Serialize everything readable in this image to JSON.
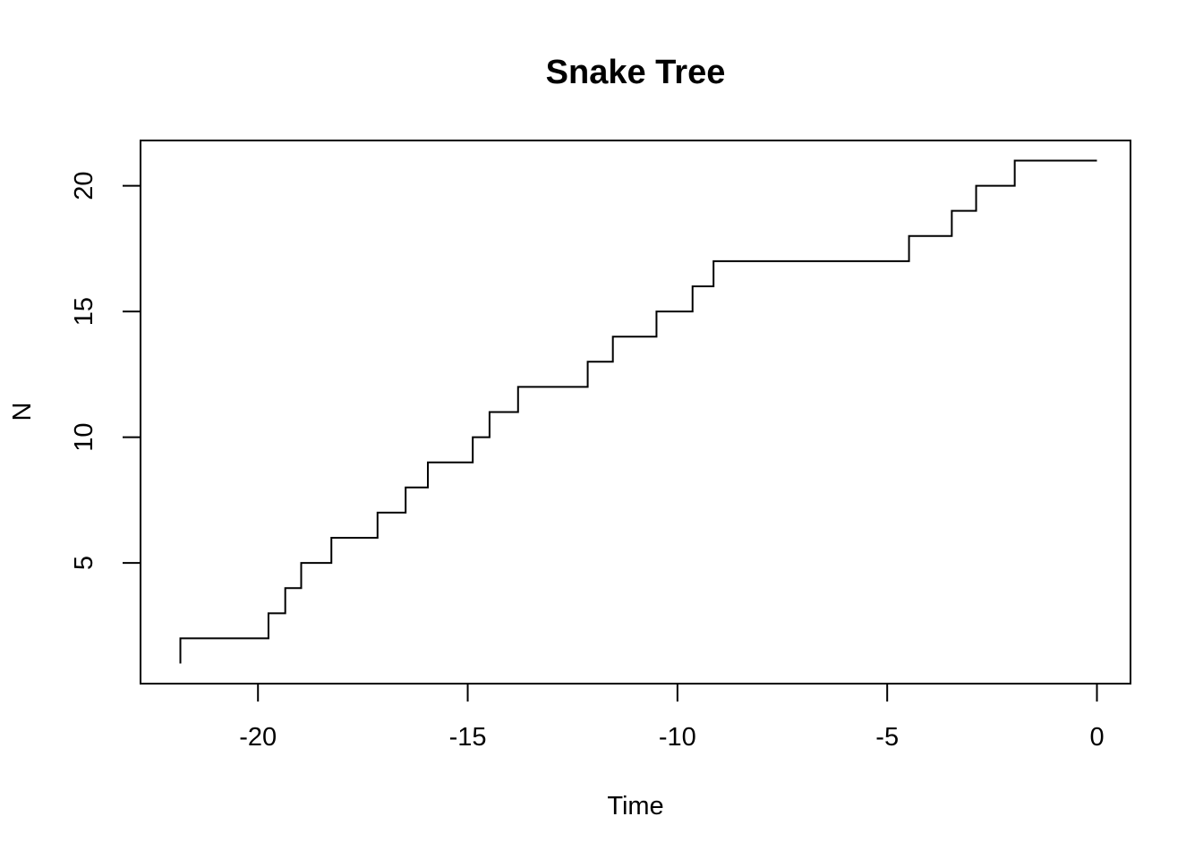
{
  "chart_data": {
    "type": "line",
    "line_style": "step",
    "title": "Snake Tree",
    "xlabel": "Time",
    "ylabel": "N",
    "xlim": [
      -22.8,
      0.8
    ],
    "ylim": [
      0.2,
      21.8
    ],
    "grid": false,
    "legend": "none",
    "line_color": "#000000",
    "x_ticks": [
      -20,
      -15,
      -10,
      -5,
      0
    ],
    "x_tick_labels": [
      "-20",
      "-15",
      "-10",
      "-5",
      "0"
    ],
    "y_ticks": [
      5,
      10,
      15,
      20
    ],
    "y_tick_labels": [
      "5",
      "10",
      "15",
      "20"
    ],
    "series": [
      {
        "x": [
          -21.85,
          -19.75,
          -19.35,
          -18.97,
          -18.25,
          -17.15,
          -16.48,
          -15.95,
          -14.88,
          -14.48,
          -13.8,
          -12.14,
          -11.54,
          -10.5,
          -9.64,
          -9.14,
          -4.48,
          -3.46,
          -2.88,
          -1.96,
          0.0
        ],
        "y": [
          1,
          2,
          3,
          4,
          5,
          6,
          7,
          8,
          9,
          10,
          11,
          12,
          13,
          14,
          15,
          16,
          17,
          18,
          19,
          20,
          21
        ]
      }
    ]
  }
}
